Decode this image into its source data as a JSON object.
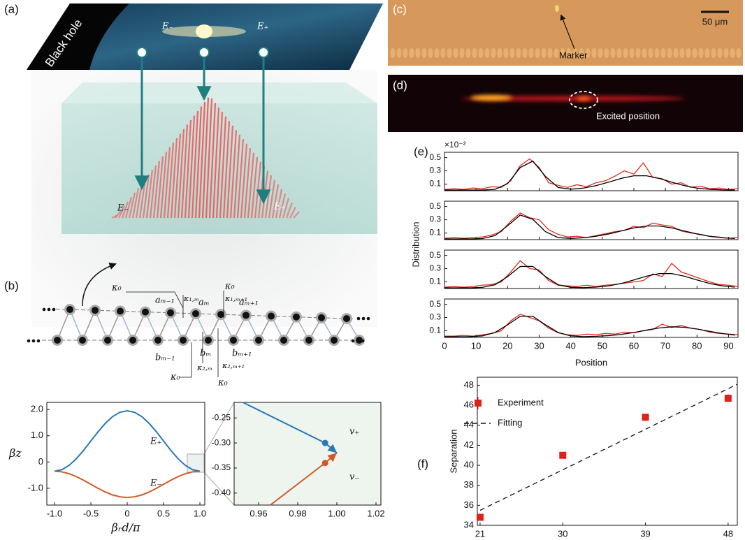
{
  "panel_labels": [
    "(a)",
    "(b)",
    "(c)",
    "(d)",
    "(e)",
    "(f)"
  ],
  "illustration": {
    "black_hole": "Black hole",
    "top_left": "E₋",
    "top_right": "E₊",
    "bottom_left": "E₋",
    "bottom_right": "E₊"
  },
  "lattice": {
    "kappa_top_left": "κ₀",
    "kappa_1m": "κ₁,ₘ",
    "kappa_top_right": "κ₀",
    "kappa_1m1": "κ₁,ₘ₊₁",
    "a_prev": "aₘ₋₁",
    "a_m": "aₘ",
    "a_next": "aₘ₊₁",
    "b_prev": "bₘ₋₁",
    "b_m": "bₘ",
    "b_next": "bₘ₊₁",
    "kappa_bottom_left": "κ₀",
    "kappa_2m": "κ₂,ₘ",
    "kappa_2m1": "κ₂,ₘ₊₁",
    "kappa_bottom_right": "κ₀"
  },
  "micrograph": {
    "marker": "Marker",
    "scale_bar": "50 μm"
  },
  "fluorescence": {
    "annotation": "Excited position"
  },
  "panel_e": {
    "ylabel": "Distribution",
    "xlabel": "Position",
    "scale": "×10⁻²"
  },
  "chart_data": [
    {
      "type": "line",
      "xlabel": "βᵣd/π",
      "ylabel": "βz",
      "xlim": [
        -1.106,
        1.067
      ],
      "ylim": [
        -1.64,
        2.27
      ],
      "xticks": [
        {
          "value": -1,
          "label": "-1.0"
        },
        {
          "value": -0.5,
          "label": "-0.5"
        },
        0,
        {
          "value": 0.5,
          "label": "0.5"
        },
        {
          "value": 1,
          "label": "1.0"
        }
      ],
      "yticks": [
        {
          "value": 2,
          "label": "2.0"
        },
        {
          "value": 1,
          "label": "1.0"
        },
        0,
        {
          "value": -1,
          "label": "-1.0"
        }
      ],
      "series": [
        {
          "name": "E₊",
          "color": "#2a78b4",
          "x": [
            -1,
            -0.9,
            -0.8,
            -0.7,
            -0.6,
            -0.5,
            -0.4,
            -0.3,
            -0.2,
            -0.1,
            0,
            0.1,
            0.2,
            0.3,
            0.4,
            0.5,
            0.6,
            0.7,
            0.8,
            0.9,
            1
          ],
          "values": [
            -0.35,
            -0.294,
            -0.13,
            0.124,
            0.445,
            0.8,
            1.155,
            1.476,
            1.73,
            1.894,
            1.95,
            1.894,
            1.73,
            1.476,
            1.155,
            0.8,
            0.445,
            0.124,
            -0.13,
            -0.294,
            -0.35
          ]
        },
        {
          "name": "E₋",
          "color": "#cf5a26",
          "x": [
            -1,
            -0.9,
            -0.8,
            -0.7,
            -0.6,
            -0.5,
            -0.4,
            -0.3,
            -0.2,
            -0.1,
            0,
            0.1,
            0.2,
            0.3,
            0.4,
            0.5,
            0.6,
            0.7,
            0.8,
            0.9,
            1
          ],
          "values": [
            -0.35,
            -0.375,
            -0.446,
            -0.556,
            -0.696,
            -0.85,
            -1.005,
            -1.144,
            -1.255,
            -1.326,
            -1.35,
            -1.326,
            -1.255,
            -1.144,
            -1.005,
            -0.85,
            -0.696,
            -0.556,
            -0.446,
            -0.375,
            -0.35
          ]
        }
      ]
    },
    {
      "type": "line",
      "xlim": [
        0.9475,
        1.0225
      ],
      "ylim": [
        -0.424,
        -0.219
      ],
      "xticks": [
        0.96,
        0.98,
        {
          "value": 1,
          "label": "1.00"
        },
        1.02
      ],
      "yticks": [
        -0.25,
        {
          "value": -0.3,
          "label": "-0.30"
        },
        -0.35,
        {
          "value": -0.4,
          "label": "-0.40"
        }
      ],
      "series": [
        {
          "name": "v₊",
          "color": "#2a78b4",
          "x": [
            0.952,
            0.994,
            1.0
          ],
          "values": [
            -0.219,
            -0.3,
            -0.32
          ]
        },
        {
          "name": "v₋",
          "color": "#cf5a26",
          "x": [
            0.966,
            0.994,
            1.0
          ],
          "values": [
            -0.424,
            -0.34,
            -0.32
          ]
        }
      ]
    },
    {
      "type": "line",
      "xlim": [
        0,
        93
      ],
      "ylim": [
        0,
        0.58
      ],
      "xticks": [
        0,
        10,
        20,
        30,
        40,
        50,
        60,
        70,
        80,
        90
      ],
      "yticks": [
        0.1,
        0.3,
        0.5
      ],
      "series": [
        {
          "color": "#e8291c",
          "x": [
            0,
            3,
            6,
            9,
            12,
            15,
            18,
            21,
            24,
            27,
            30,
            33,
            36,
            39,
            42,
            45,
            48,
            51,
            54,
            57,
            60,
            63,
            66,
            69,
            72,
            75,
            78,
            81,
            84,
            87,
            90,
            93
          ],
          "values": [
            0.02,
            0.03,
            0.02,
            0.04,
            0.03,
            0.06,
            0.05,
            0.15,
            0.38,
            0.48,
            0.35,
            0.12,
            0.08,
            0.05,
            0.09,
            0.06,
            0.12,
            0.15,
            0.22,
            0.3,
            0.25,
            0.42,
            0.2,
            0.18,
            0.1,
            0.12,
            0.05,
            0.07,
            0.03,
            0.04,
            0.02,
            0.03
          ]
        },
        {
          "color": "#000000",
          "x": [
            0,
            4,
            8,
            12,
            16,
            20,
            24,
            28,
            32,
            36,
            40,
            44,
            48,
            52,
            56,
            60,
            64,
            68,
            72,
            76,
            80,
            84,
            88,
            92
          ],
          "values": [
            0.01,
            0.01,
            0.01,
            0.01,
            0.02,
            0.107,
            0.35,
            0.447,
            0.216,
            0.049,
            0.023,
            0.04,
            0.076,
            0.129,
            0.186,
            0.225,
            0.225,
            0.186,
            0.129,
            0.076,
            0.04,
            0.021,
            0.013,
            0.011
          ]
        }
      ]
    },
    {
      "type": "line",
      "xlim": [
        0,
        93
      ],
      "ylim": [
        0,
        0.58
      ],
      "xticks": [
        0,
        10,
        20,
        30,
        40,
        50,
        60,
        70,
        80,
        90
      ],
      "yticks": [
        0.1,
        0.3,
        0.5
      ],
      "series": [
        {
          "color": "#e8291c",
          "x": [
            0,
            3,
            6,
            9,
            12,
            15,
            18,
            21,
            24,
            27,
            30,
            33,
            36,
            39,
            42,
            45,
            48,
            51,
            54,
            57,
            60,
            63,
            66,
            69,
            72,
            75,
            78,
            81,
            84,
            87,
            90,
            93
          ],
          "values": [
            0.02,
            0.03,
            0.02,
            0.03,
            0.04,
            0.07,
            0.12,
            0.28,
            0.4,
            0.33,
            0.3,
            0.15,
            0.08,
            0.04,
            0.05,
            0.03,
            0.06,
            0.09,
            0.12,
            0.14,
            0.2,
            0.18,
            0.25,
            0.22,
            0.2,
            0.13,
            0.1,
            0.08,
            0.05,
            0.04,
            0.02,
            0.03
          ]
        },
        {
          "color": "#000000",
          "x": [
            0,
            4,
            8,
            12,
            16,
            20,
            24,
            28,
            32,
            36,
            40,
            44,
            48,
            52,
            56,
            60,
            64,
            68,
            72,
            76,
            80,
            84,
            88,
            92
          ],
          "values": [
            0.01,
            0.01,
            0.01,
            0.016,
            0.06,
            0.21,
            0.37,
            0.306,
            0.12,
            0.031,
            0.018,
            0.028,
            0.05,
            0.085,
            0.131,
            0.177,
            0.206,
            0.206,
            0.177,
            0.131,
            0.085,
            0.05,
            0.028,
            0.017
          ]
        }
      ]
    },
    {
      "type": "line",
      "xlim": [
        0,
        93
      ],
      "ylim": [
        0,
        0.58
      ],
      "xticks": [
        0,
        10,
        20,
        30,
        40,
        50,
        60,
        70,
        80,
        90
      ],
      "yticks": [
        0.1,
        0.3,
        0.5
      ],
      "series": [
        {
          "color": "#e8291c",
          "x": [
            0,
            3,
            6,
            9,
            12,
            15,
            18,
            21,
            24,
            27,
            30,
            33,
            36,
            39,
            42,
            45,
            48,
            51,
            54,
            57,
            60,
            63,
            66,
            69,
            72,
            75,
            78,
            81,
            84,
            87,
            90,
            93
          ],
          "values": [
            0.02,
            0.03,
            0.02,
            0.03,
            0.05,
            0.06,
            0.1,
            0.25,
            0.42,
            0.3,
            0.28,
            0.12,
            0.05,
            0.04,
            0.03,
            0.05,
            0.03,
            0.05,
            0.06,
            0.08,
            0.1,
            0.12,
            0.22,
            0.18,
            0.38,
            0.25,
            0.2,
            0.15,
            0.1,
            0.06,
            0.05,
            0.03
          ]
        },
        {
          "color": "#000000",
          "x": [
            0,
            4,
            8,
            12,
            16,
            20,
            24,
            28,
            32,
            36,
            40,
            44,
            48,
            52,
            56,
            60,
            64,
            68,
            72,
            76,
            80,
            84,
            88,
            92
          ],
          "values": [
            0.01,
            0.01,
            0.01,
            0.017,
            0.057,
            0.18,
            0.333,
            0.333,
            0.18,
            0.057,
            0.018,
            0.013,
            0.021,
            0.04,
            0.076,
            0.129,
            0.186,
            0.225,
            0.225,
            0.186,
            0.129,
            0.076,
            0.04,
            0.021
          ]
        }
      ]
    },
    {
      "type": "line",
      "xlim": [
        0,
        93
      ],
      "ylim": [
        0,
        0.58
      ],
      "xticks": [
        0,
        10,
        20,
        30,
        40,
        50,
        60,
        70,
        80,
        90
      ],
      "yticks": [
        0.1,
        0.3,
        0.5
      ],
      "series": [
        {
          "color": "#e8291c",
          "x": [
            0,
            3,
            6,
            9,
            12,
            15,
            18,
            21,
            24,
            27,
            30,
            33,
            36,
            39,
            42,
            45,
            48,
            51,
            54,
            57,
            60,
            63,
            66,
            69,
            72,
            75,
            78,
            81,
            84,
            87,
            90,
            93
          ],
          "values": [
            0.02,
            0.02,
            0.03,
            0.02,
            0.04,
            0.06,
            0.1,
            0.25,
            0.35,
            0.3,
            0.25,
            0.14,
            0.07,
            0.04,
            0.03,
            0.05,
            0.04,
            0.06,
            0.05,
            0.08,
            0.07,
            0.1,
            0.12,
            0.2,
            0.15,
            0.18,
            0.14,
            0.12,
            0.08,
            0.06,
            0.05,
            0.04
          ]
        },
        {
          "color": "#000000",
          "x": [
            0,
            4,
            8,
            12,
            16,
            20,
            24,
            28,
            32,
            36,
            40,
            44,
            48,
            52,
            56,
            60,
            64,
            68,
            72,
            76,
            80,
            84,
            88,
            92
          ],
          "values": [
            0.01,
            0.01,
            0.012,
            0.023,
            0.074,
            0.19,
            0.319,
            0.319,
            0.19,
            0.074,
            0.023,
            0.012,
            0.017,
            0.027,
            0.045,
            0.074,
            0.11,
            0.142,
            0.16,
            0.153,
            0.127,
            0.092,
            0.059,
            0.035
          ]
        }
      ]
    },
    {
      "type": "scatter",
      "xlabel": "Excited position",
      "ylabel": "Separation",
      "xlim": [
        20.7,
        49
      ],
      "ylim": [
        34,
        48.8
      ],
      "xticks": [
        21,
        30,
        39,
        48
      ],
      "yticks": [
        34,
        36,
        38,
        40,
        42,
        44,
        46,
        48
      ],
      "legend": "upper left",
      "series": [
        {
          "name": "Experiment",
          "mode": "markers",
          "color": "#e0201b",
          "x": [
            21,
            30,
            39,
            48
          ],
          "values": [
            34.8,
            41.0,
            44.8,
            46.7
          ],
          "errors": [
            0.3,
            0.3,
            0.3,
            0.4
          ]
        },
        {
          "name": "Fitting",
          "mode": "dashed",
          "color": "#111111",
          "x": [
            21,
            49
          ],
          "values": [
            35.5,
            48.1
          ]
        }
      ]
    }
  ]
}
